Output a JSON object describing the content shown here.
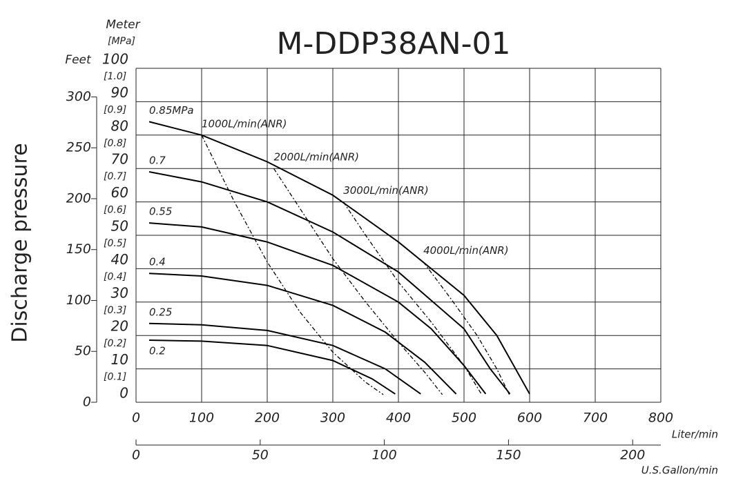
{
  "chart_data": {
    "type": "line",
    "title": "M-DDP38AN-01",
    "y_label": "Discharge pressure",
    "y_unit": "Meter",
    "y_unit_mpa": "[MPa]",
    "y_unit_feet": "Feet",
    "x_label": "Liter/min",
    "x2_label": "U.S.Gallon/min",
    "xlim": [
      0,
      800
    ],
    "xticks": [
      0,
      100,
      200,
      300,
      400,
      500,
      600,
      700,
      800
    ],
    "ylim": [
      0,
      100
    ],
    "yticks": [
      0,
      10,
      20,
      30,
      40,
      50,
      60,
      70,
      80,
      90,
      100
    ],
    "y2lim": [
      0,
      1.0
    ],
    "y2ticks": [
      {
        "value": 0.1,
        "label": "[0.1]"
      },
      {
        "value": 0.2,
        "label": "[0.2]"
      },
      {
        "value": 0.3,
        "label": "[0.3]"
      },
      {
        "value": 0.4,
        "label": "[0.4]"
      },
      {
        "value": 0.5,
        "label": "[0.5]"
      },
      {
        "value": 0.6,
        "label": "[0.6]"
      },
      {
        "value": 0.7,
        "label": "[0.7]"
      },
      {
        "value": 0.8,
        "label": "[0.8]"
      },
      {
        "value": 0.9,
        "label": "[0.9]"
      },
      {
        "value": 1.0,
        "label": "[1.0]"
      }
    ],
    "y3lim": [
      0,
      328.08
    ],
    "y3ticks": [
      0,
      50,
      100,
      150,
      200,
      250,
      300
    ],
    "x2lim": [
      0,
      211.34
    ],
    "x2ticks": [
      0,
      50,
      100,
      150,
      200
    ],
    "grid": true,
    "color": "#000000",
    "series": [
      {
        "name": "0.85MPa",
        "style": "solid",
        "x": [
          20,
          100,
          200,
          300,
          400,
          500,
          550,
          600
        ],
        "values": [
          84,
          80,
          72,
          62,
          48,
          32,
          20,
          2.5
        ]
      },
      {
        "name": "0.7",
        "style": "solid",
        "x": [
          20,
          100,
          200,
          300,
          400,
          500,
          540,
          570
        ],
        "values": [
          69,
          66,
          60,
          51,
          39,
          22,
          10,
          2.5
        ]
      },
      {
        "name": "0.55",
        "style": "solid",
        "x": [
          20,
          100,
          200,
          300,
          400,
          450,
          500,
          533
        ],
        "values": [
          53.7,
          52.5,
          48,
          41,
          30,
          22,
          11,
          2.5
        ]
      },
      {
        "name": "0.4",
        "style": "solid",
        "x": [
          20,
          100,
          200,
          300,
          380,
          440,
          488
        ],
        "values": [
          38.6,
          37.8,
          35,
          29,
          21,
          12,
          2.5
        ]
      },
      {
        "name": "0.25",
        "style": "solid",
        "x": [
          20,
          100,
          200,
          300,
          380,
          434
        ],
        "values": [
          23.6,
          23.2,
          21.5,
          17,
          10,
          2.5
        ]
      },
      {
        "name": "0.2",
        "style": "solid",
        "x": [
          20,
          100,
          200,
          300,
          360,
          395
        ],
        "values": [
          18.6,
          18.3,
          17,
          12.5,
          7,
          2.5
        ]
      },
      {
        "name": "1000L/min(ANR)",
        "style": "dashed",
        "x": [
          100,
          150,
          200,
          250,
          300,
          350,
          377
        ],
        "values": [
          80,
          60,
          42,
          27,
          15,
          6,
          2.3
        ]
      },
      {
        "name": "2000L/min(ANR)",
        "style": "dashed",
        "x": [
          210,
          250,
          300,
          350,
          400,
          440,
          467
        ],
        "values": [
          70,
          58,
          43,
          30,
          18,
          9,
          2.3
        ]
      },
      {
        "name": "3000L/min(ANR)",
        "style": "dashed",
        "x": [
          316,
          350,
          400,
          450,
          500,
          527
        ],
        "values": [
          60,
          50,
          36,
          24,
          11,
          2.3
        ]
      },
      {
        "name": "4000L/min(ANR)",
        "style": "dashed",
        "x": [
          438,
          480,
          520,
          550,
          569
        ],
        "values": [
          42,
          31,
          20,
          10,
          2.3
        ]
      }
    ]
  }
}
